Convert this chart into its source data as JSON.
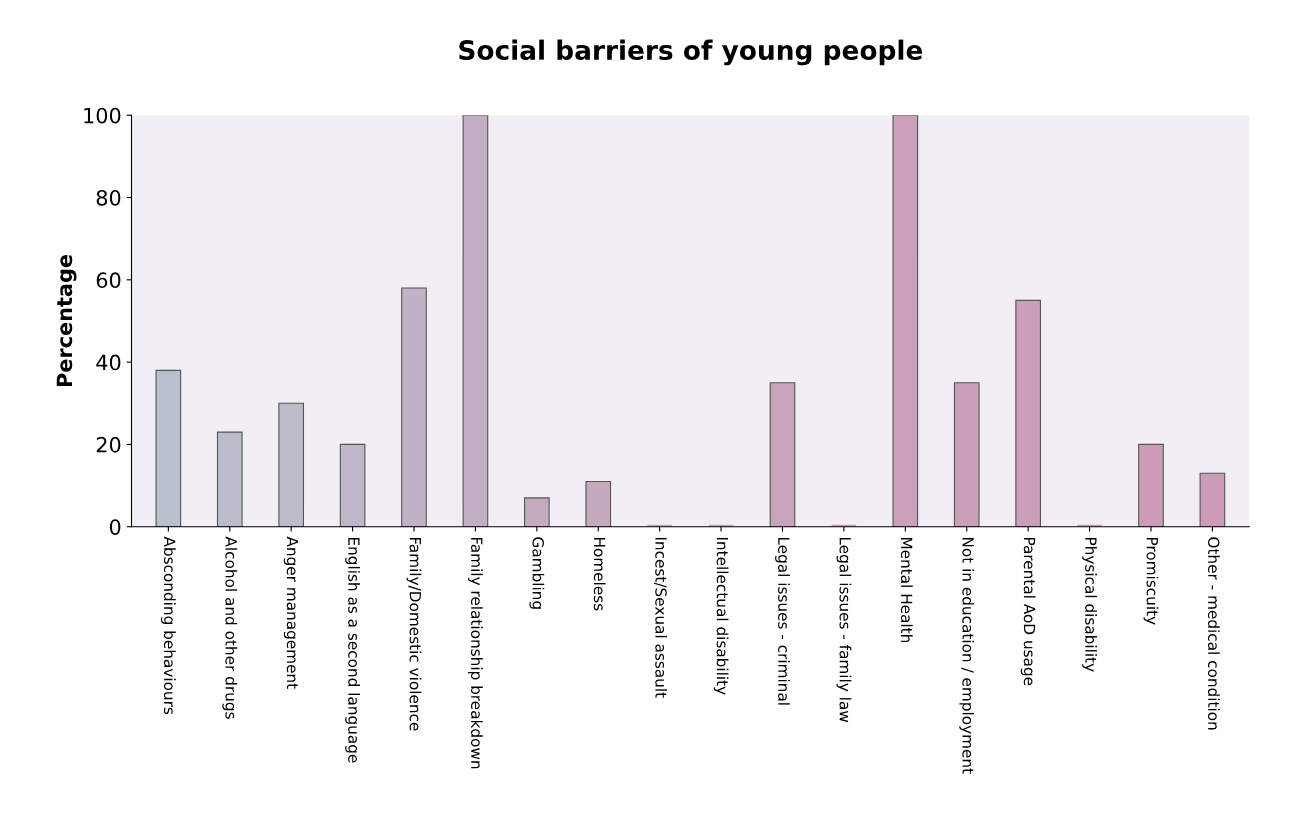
{
  "chart_data": {
    "type": "bar",
    "title": "Social barriers of young people",
    "ylabel": "Percentage",
    "categories": [
      "Absconding behaviours",
      "Alcohol and other drugs",
      "Anger management",
      "English as a second language",
      "Family/Domestic violence",
      "Family relationship breakdown",
      "Gambling",
      "Homeless",
      "Incest/Sexual assault",
      "Intellectual disability",
      "Legal issues - criminal",
      "Legal issues - family law",
      "Mental Health",
      "Not in education / employment",
      "Parental AoD usage",
      "Physical disability",
      "Promiscuity",
      "Other - medical condition"
    ],
    "values": [
      38,
      23,
      30,
      20,
      58,
      100,
      7,
      11,
      0,
      0,
      35,
      0,
      100,
      35,
      55,
      0,
      20,
      13
    ],
    "colors": [
      "#b9bfcc",
      "#bbbccb",
      "#bdbaca",
      "#bfb7c8",
      "#c1b3c6",
      "#c3afc3",
      "#c4abc0",
      "#c5a9bf",
      "#c6a7be",
      "#c7a5bd",
      "#c8a3bc",
      "#c9a1bb",
      "#caa0ba",
      "#ca9fba",
      "#cb9eb9",
      "#cb9db9",
      "#cc9cb8",
      "#cc9cb8"
    ],
    "ylim": [
      0,
      100
    ],
    "yticks": [
      0,
      20,
      40,
      60,
      80,
      100
    ],
    "grid": false
  }
}
